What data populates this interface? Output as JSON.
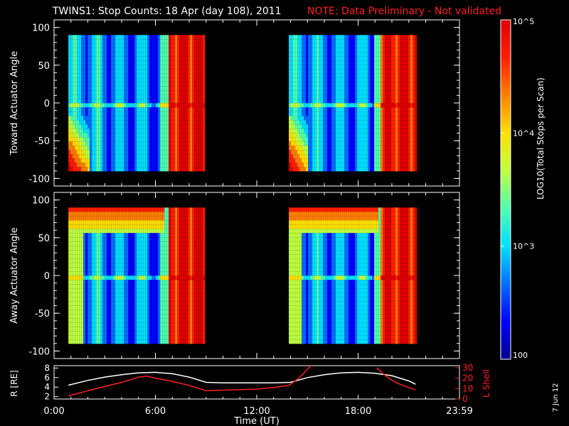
{
  "header": {
    "title": "TWINS1: Stop Counts: 18 Apr (day 108), 2011",
    "note": "NOTE: Data Preliminary - Not validated",
    "note_color": "#ff2020"
  },
  "footer": {
    "date_stamp": "7 Jun 12"
  },
  "colorbar": {
    "label": "LOG10(Total Stops per Scan)",
    "tick_labels": [
      "100",
      "10^3",
      "10^4",
      "10^5"
    ],
    "tick_values": [
      100,
      1000,
      10000,
      100000
    ],
    "colormap": [
      "#00008f",
      "#0000ff",
      "#006fff",
      "#00dfff",
      "#4fffaf",
      "#bfff3f",
      "#ffdf00",
      "#ff7f00",
      "#ff1f00",
      "#df0000"
    ]
  },
  "chart_data": [
    {
      "type": "heatmap",
      "ylabel": "Toward Actuator Angle",
      "y_ticks": [
        "-100",
        "-50",
        "0",
        "50",
        "100"
      ],
      "ylim": [
        -110,
        110
      ],
      "xlim_hours": [
        0,
        24
      ],
      "x_ticks": [
        "0:00",
        "6:00",
        "12:00",
        "18:00",
        "23:59"
      ],
      "segments": [
        {
          "start_hour": 0.85,
          "end_hour": 8.95
        },
        {
          "start_hour": 13.9,
          "end_hour": 21.4
        }
      ],
      "angle_range": [
        -88,
        90
      ]
    },
    {
      "type": "heatmap",
      "ylabel": "Away Actuator Angle",
      "y_ticks": [
        "-100",
        "-50",
        "0",
        "50",
        "100"
      ],
      "ylim": [
        -110,
        110
      ],
      "xlim_hours": [
        0,
        24
      ],
      "x_ticks": [
        "0:00",
        "6:00",
        "12:00",
        "18:00",
        "23:59"
      ],
      "segments": [
        {
          "start_hour": 0.85,
          "end_hour": 8.95
        },
        {
          "start_hour": 13.9,
          "end_hour": 21.4
        }
      ],
      "angle_range": [
        -88,
        90
      ]
    },
    {
      "type": "line",
      "ylabel": "R [RE]",
      "y2label": "L Shell",
      "xlabel": "Time (UT)",
      "x_ticks": [
        "0:00",
        "6:00",
        "12:00",
        "18:00",
        "23:59"
      ],
      "y_ticks": [
        "2",
        "4",
        "6",
        "8"
      ],
      "ylim": [
        1.5,
        8.5
      ],
      "y2_ticks": [
        "0",
        "10",
        "20",
        "30"
      ],
      "y2lim": [
        0,
        32
      ],
      "series": [
        {
          "name": "R [RE]",
          "color": "#ffffff",
          "x": [
            0.85,
            2,
            3,
            4,
            5,
            6,
            7,
            8,
            9,
            10,
            11,
            12,
            13,
            14,
            15,
            16,
            17,
            18,
            19,
            20,
            21,
            21.4
          ],
          "y": [
            4.4,
            5.4,
            6.1,
            6.6,
            7.0,
            7.1,
            6.8,
            6.1,
            5.0,
            4.9,
            4.9,
            4.9,
            4.9,
            5.0,
            6.0,
            6.6,
            7.0,
            7.1,
            6.9,
            6.4,
            5.3,
            4.6
          ]
        },
        {
          "name": "L Shell",
          "color": "#ff2020",
          "x": [
            0.85,
            2,
            3,
            4,
            5,
            5.5,
            6,
            7,
            8,
            9,
            10,
            11,
            12,
            13,
            13.9,
            14.5,
            15.2
          ],
          "y": [
            3,
            8,
            12,
            16,
            21,
            22,
            20,
            17,
            13,
            8,
            8.5,
            9,
            9.5,
            11,
            13,
            20,
            32
          ]
        },
        {
          "name": "L Shell",
          "color": "#ff2020",
          "x": [
            19.1,
            19.5,
            20,
            20.5,
            21,
            21.4
          ],
          "y": [
            30,
            24,
            18,
            14,
            11,
            9
          ]
        }
      ]
    }
  ]
}
